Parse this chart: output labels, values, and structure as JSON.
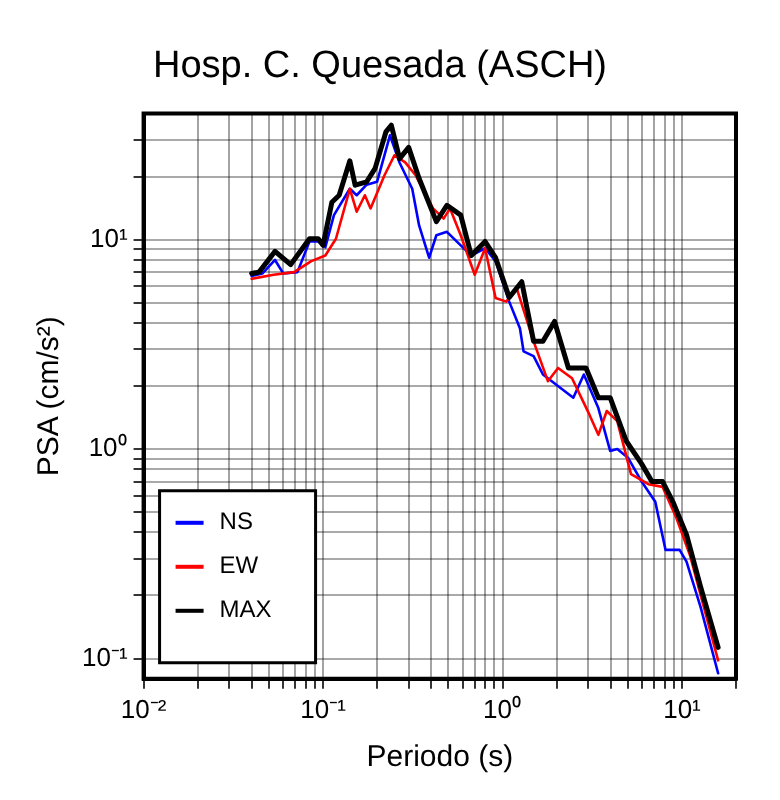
{
  "chart_data": {
    "type": "line",
    "title": "Hosp. C. Quesada (ASCH)",
    "xlabel": "Periodo (s)",
    "ylabel": "PSA (cm/s²)",
    "log": "xy",
    "grid": true,
    "legend": "bottom left",
    "marker": "none",
    "line_style": "solid",
    "xlim": [
      0.01,
      20
    ],
    "ylim": [
      0.08,
      40
    ],
    "xticks": [
      {
        "value": 0.01,
        "label": "10⁻²"
      },
      {
        "value": 0.02,
        "label": null
      },
      {
        "value": 0.03,
        "label": null
      },
      {
        "value": 0.04,
        "label": null
      },
      {
        "value": 0.05,
        "label": null
      },
      {
        "value": 0.06,
        "label": null
      },
      {
        "value": 0.07,
        "label": null
      },
      {
        "value": 0.08,
        "label": null
      },
      {
        "value": 0.09,
        "label": null
      },
      {
        "value": 0.1,
        "label": "10⁻¹"
      },
      {
        "value": 0.2,
        "label": null
      },
      {
        "value": 0.3,
        "label": null
      },
      {
        "value": 0.4,
        "label": null
      },
      {
        "value": 0.5,
        "label": null
      },
      {
        "value": 0.6,
        "label": null
      },
      {
        "value": 0.7,
        "label": null
      },
      {
        "value": 0.8,
        "label": null
      },
      {
        "value": 0.9,
        "label": null
      },
      {
        "value": 1,
        "label": "10⁰"
      },
      {
        "value": 2,
        "label": null
      },
      {
        "value": 3,
        "label": null
      },
      {
        "value": 4,
        "label": null
      },
      {
        "value": 5,
        "label": null
      },
      {
        "value": 6,
        "label": null
      },
      {
        "value": 7,
        "label": null
      },
      {
        "value": 8,
        "label": null
      },
      {
        "value": 9,
        "label": null
      },
      {
        "value": 10,
        "label": "10¹"
      },
      {
        "value": 20,
        "label": null
      }
    ],
    "yticks": [
      {
        "value": 0.1,
        "label": "10⁻¹"
      },
      {
        "value": 0.2,
        "label": null
      },
      {
        "value": 0.3,
        "label": null
      },
      {
        "value": 0.4,
        "label": null
      },
      {
        "value": 0.5,
        "label": null
      },
      {
        "value": 0.6,
        "label": null
      },
      {
        "value": 0.7,
        "label": null
      },
      {
        "value": 0.8,
        "label": null
      },
      {
        "value": 0.9,
        "label": null
      },
      {
        "value": 1,
        "label": "10⁰"
      },
      {
        "value": 2,
        "label": null
      },
      {
        "value": 3,
        "label": null
      },
      {
        "value": 4,
        "label": null
      },
      {
        "value": 5,
        "label": null
      },
      {
        "value": 6,
        "label": null
      },
      {
        "value": 7,
        "label": null
      },
      {
        "value": 8,
        "label": null
      },
      {
        "value": 9,
        "label": null
      },
      {
        "value": 10,
        "label": "10¹"
      },
      {
        "value": 20,
        "label": null
      },
      {
        "value": 30,
        "label": null
      }
    ],
    "series": [
      {
        "name": "NS",
        "color": "#0000ff",
        "x": [
          0.04,
          0.046,
          0.054,
          0.06,
          0.072,
          0.084,
          0.094,
          0.103,
          0.115,
          0.141,
          0.154,
          0.175,
          0.2,
          0.236,
          0.267,
          0.314,
          0.343,
          0.39,
          0.428,
          0.49,
          0.585,
          0.67,
          0.8,
          0.915,
          1.09,
          1.25,
          1.31,
          1.49,
          1.68,
          2.48,
          2.84,
          3.42,
          3.98,
          4.36,
          5.0,
          5.96,
          7.1,
          8.1,
          9.7,
          10.6,
          12.7,
          15.9
        ],
        "values": [
          6.7,
          6.9,
          8.0,
          6.9,
          7.0,
          9.8,
          9.8,
          9.2,
          13.1,
          17.5,
          16.3,
          18.3,
          18.9,
          31.5,
          23.3,
          17.5,
          11.7,
          8.2,
          10.5,
          10.9,
          9.4,
          8.4,
          9.1,
          7.9,
          5.06,
          3.78,
          2.93,
          2.78,
          2.27,
          1.76,
          2.27,
          1.57,
          0.98,
          1.0,
          0.91,
          0.7,
          0.56,
          0.33,
          0.33,
          0.29,
          0.176,
          0.085
        ]
      },
      {
        "name": "EW",
        "color": "#ff0000",
        "x": [
          0.04,
          0.053,
          0.069,
          0.086,
          0.103,
          0.118,
          0.141,
          0.154,
          0.171,
          0.184,
          0.22,
          0.25,
          0.287,
          0.328,
          0.41,
          0.47,
          0.51,
          0.585,
          0.7,
          0.8,
          0.915,
          1.05,
          1.2,
          1.49,
          1.79,
          2.04,
          2.44,
          3.05,
          3.42,
          3.81,
          4.36,
          5.2,
          6.5,
          7.8,
          9.3,
          11.1,
          15.9
        ],
        "values": [
          6.5,
          6.8,
          7.0,
          7.9,
          8.4,
          10.1,
          17.5,
          13.6,
          16.3,
          14.1,
          20.3,
          25.3,
          23.4,
          20.3,
          14.1,
          12.6,
          14.1,
          10.5,
          6.8,
          9.1,
          5.26,
          5.06,
          5.86,
          3.27,
          2.11,
          2.44,
          2.18,
          1.46,
          1.17,
          1.52,
          1.36,
          0.76,
          0.68,
          0.66,
          0.47,
          0.31,
          0.098
        ]
      },
      {
        "name": "MAX",
        "color": "#000000",
        "x": [
          0.04,
          0.044,
          0.054,
          0.066,
          0.084,
          0.094,
          0.1,
          0.112,
          0.123,
          0.141,
          0.151,
          0.175,
          0.195,
          0.224,
          0.24,
          0.267,
          0.3,
          0.343,
          0.428,
          0.49,
          0.585,
          0.67,
          0.8,
          0.915,
          1.09,
          1.28,
          1.49,
          1.68,
          1.95,
          2.33,
          2.92,
          3.42,
          3.98,
          4.9,
          5.96,
          6.8,
          7.8,
          8.9,
          10.6,
          12.7,
          15.9
        ],
        "values": [
          6.9,
          7.0,
          8.8,
          7.6,
          10.1,
          10.1,
          9.4,
          15.1,
          16.3,
          23.8,
          18.2,
          18.9,
          21.9,
          32.7,
          35.2,
          24.4,
          27.6,
          19.6,
          12.2,
          14.6,
          13.1,
          8.4,
          9.8,
          8.2,
          5.3,
          6.3,
          3.27,
          3.27,
          4.07,
          2.44,
          2.44,
          1.76,
          1.76,
          1.09,
          0.85,
          0.7,
          0.7,
          0.56,
          0.39,
          0.22,
          0.113
        ]
      }
    ]
  }
}
